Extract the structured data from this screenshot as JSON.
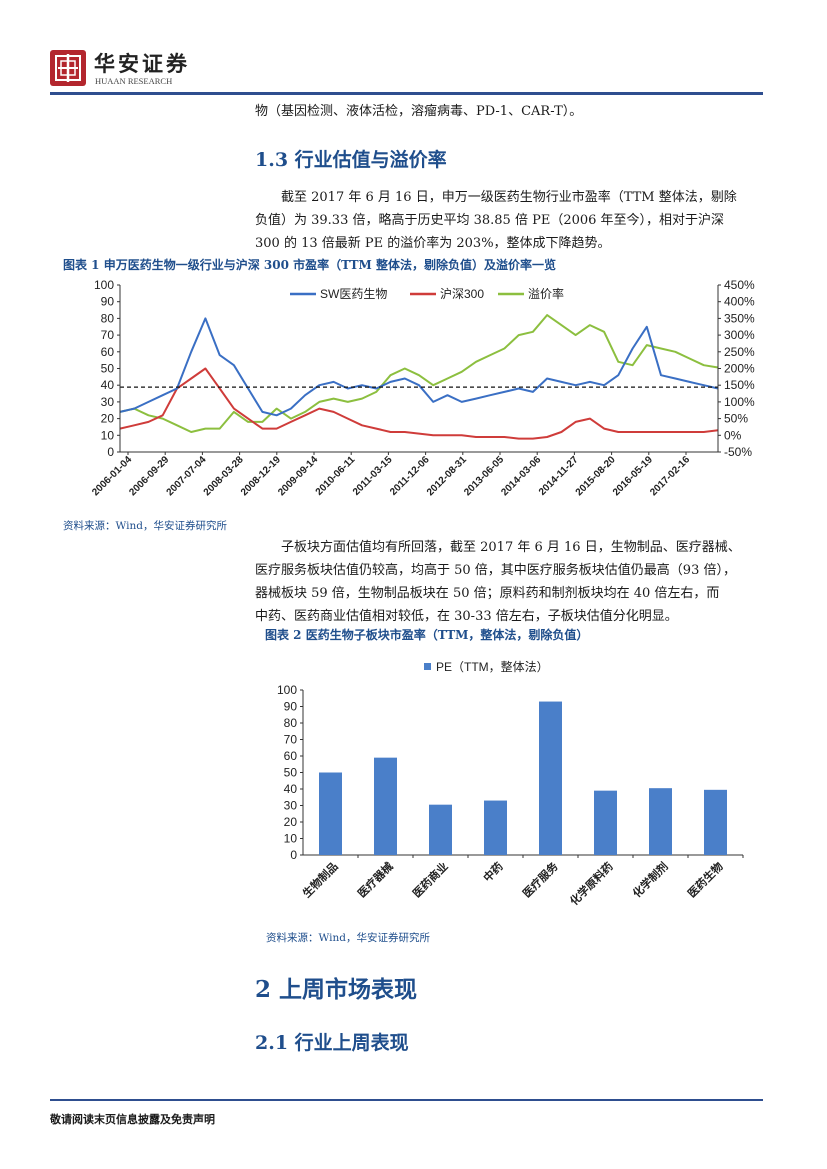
{
  "header": {
    "brand_cn": "华安证券",
    "brand_en": "HUAAN RESEARCH"
  },
  "intro_tail": "物（基因检测、液体活检，溶瘤病毒、PD-1、CAR-T）。",
  "section_1_3": {
    "title": "1.3 行业估值与溢价率",
    "para": [
      "截至 2017 年 6 月 16 日，申万一级医药生物行业市盈率（TTM 整体法，剔除",
      "负值）为 39.33 倍，略高于历史平均 38.85 倍 PE（2006 年至今），相对于沪深",
      "300 的 13 倍最新 PE 的溢价率为 203%，整体成下降趋势。"
    ]
  },
  "figure1": {
    "caption": "图表 1 申万医药生物一级行业与沪深 300 市盈率（TTM 整体法，剔除负值）及溢价率一览",
    "source": "资料来源：Wind，华安证券研究所"
  },
  "section_1_3_b": {
    "para": [
      "子板块方面估值均有所回落，截至 2017 年 6 月 16 日，生物制品、医疗器械、",
      "医疗服务板块估值仍较高，均高于 50 倍，其中医疗服务板块估值仍最高（93 倍），",
      "器械板块 59 倍，生物制品板块在 50 倍；原料药和制剂板块均在 40 倍左右，而",
      "中药、医药商业估值相对较低，在 30-33 倍左右，子板块估值分化明显。"
    ]
  },
  "figure2": {
    "caption": "图表 2 医药生物子板块市盈率（TTM，整体法，剔除负值）",
    "source": "资料来源：Wind，华安证券研究所"
  },
  "section_2": {
    "title": "2 上周市场表现"
  },
  "section_2_1": {
    "title": "2.1 行业上周表现"
  },
  "footer": {
    "text": "敬请阅读末页信息披露及免责声明"
  },
  "colors": {
    "sw": "#3a6fc4",
    "hs300": "#cf3c3a",
    "premium": "#8cbf3f",
    "bar": "#4a7fc9",
    "accent": "#1f4e8c"
  },
  "chart_data": [
    {
      "type": "line",
      "x_ticks": [
        "2006-01-04",
        "2006-09-29",
        "2007-07-04",
        "2008-03-28",
        "2008-12-19",
        "2009-09-14",
        "2010-06-11",
        "2011-03-15",
        "2011-12-06",
        "2012-08-31",
        "2013-06-05",
        "2014-03-06",
        "2014-11-27",
        "2015-08-20",
        "2016-05-19",
        "2017-02-16"
      ],
      "y_left_ticks": [
        "0",
        "10",
        "20",
        "30",
        "40",
        "50",
        "60",
        "70",
        "80",
        "90",
        "100"
      ],
      "y_left_range": [
        0,
        100
      ],
      "y_right_ticks": [
        "-50%",
        "0%",
        "50%",
        "100%",
        "150%",
        "200%",
        "250%",
        "300%",
        "350%",
        "400%",
        "450%"
      ],
      "y_right_range": [
        -50,
        450
      ],
      "average_line": 38.85,
      "legend": [
        "SW医药生物",
        "沪深300",
        "溢价率"
      ],
      "legend_position": "top",
      "series": [
        {
          "name": "SW医药生物",
          "axis": "left",
          "values": [
            24,
            26,
            30,
            34,
            38,
            60,
            80,
            58,
            52,
            38,
            24,
            22,
            26,
            34,
            40,
            42,
            38,
            40,
            38,
            42,
            44,
            40,
            30,
            34,
            30,
            32,
            34,
            36,
            38,
            36,
            44,
            42,
            40,
            42,
            40,
            46,
            62,
            75,
            46,
            44,
            42,
            40,
            38
          ]
        },
        {
          "name": "沪深300",
          "axis": "left",
          "values": [
            14,
            16,
            18,
            22,
            38,
            44,
            50,
            38,
            26,
            20,
            14,
            14,
            18,
            22,
            26,
            24,
            20,
            16,
            14,
            12,
            12,
            11,
            10,
            10,
            10,
            9,
            9,
            9,
            8,
            8,
            9,
            12,
            18,
            20,
            14,
            12,
            12,
            12,
            12,
            12,
            12,
            12,
            13
          ]
        },
        {
          "name": "溢价率",
          "axis": "right",
          "values": [
            70,
            80,
            60,
            50,
            30,
            10,
            20,
            20,
            70,
            40,
            40,
            80,
            50,
            70,
            100,
            110,
            100,
            110,
            130,
            180,
            200,
            180,
            150,
            170,
            190,
            220,
            240,
            260,
            300,
            310,
            360,
            330,
            300,
            330,
            310,
            220,
            210,
            270,
            260,
            250,
            230,
            210,
            203
          ]
        }
      ]
    },
    {
      "type": "bar",
      "legend": [
        "PE（TTM，整体法）"
      ],
      "legend_position": "top",
      "categories": [
        "生物制品",
        "医疗器械",
        "医药商业",
        "中药",
        "医疗服务",
        "化学原料药",
        "化学制剂",
        "医药生物"
      ],
      "values": [
        50,
        59,
        30.5,
        33,
        93,
        39,
        40.5,
        39.5
      ],
      "y_ticks": [
        "0",
        "10",
        "20",
        "30",
        "40",
        "50",
        "60",
        "70",
        "80",
        "90",
        "100"
      ],
      "ylim": [
        0,
        100
      ]
    }
  ]
}
